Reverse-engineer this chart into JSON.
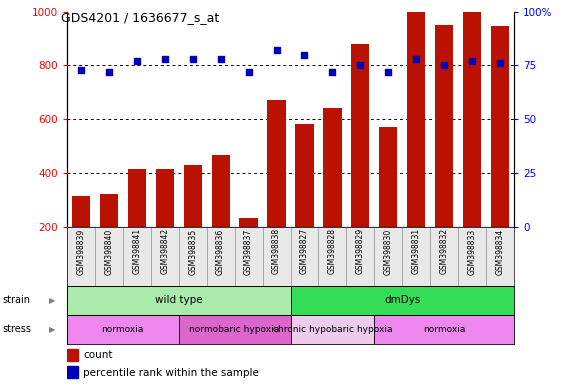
{
  "title": "GDS4201 / 1636677_s_at",
  "samples": [
    "GSM398839",
    "GSM398840",
    "GSM398841",
    "GSM398842",
    "GSM398835",
    "GSM398836",
    "GSM398837",
    "GSM398838",
    "GSM398827",
    "GSM398828",
    "GSM398829",
    "GSM398830",
    "GSM398831",
    "GSM398832",
    "GSM398833",
    "GSM398834"
  ],
  "counts": [
    315,
    320,
    415,
    415,
    430,
    465,
    230,
    670,
    580,
    640,
    880,
    570,
    1000,
    950,
    1000,
    945
  ],
  "percentile_ranks": [
    73,
    72,
    77,
    78,
    78,
    78,
    72,
    82,
    80,
    72,
    75,
    72,
    78,
    75,
    77,
    76
  ],
  "strain_groups": [
    {
      "label": "wild type",
      "start": 0,
      "end": 8,
      "color": "#aaeaaa"
    },
    {
      "label": "dmDys",
      "start": 8,
      "end": 16,
      "color": "#33dd55"
    }
  ],
  "stress_groups": [
    {
      "label": "normoxia",
      "start": 0,
      "end": 4,
      "color": "#ee88ee"
    },
    {
      "label": "normobaric hypoxia",
      "start": 4,
      "end": 8,
      "color": "#dd66cc"
    },
    {
      "label": "chronic hypobaric hypoxia",
      "start": 8,
      "end": 11,
      "color": "#eeccee"
    },
    {
      "label": "normoxia",
      "start": 11,
      "end": 16,
      "color": "#ee88ee"
    }
  ],
  "bar_color": "#bb1100",
  "dot_color": "#0000bb",
  "left_ylim": [
    200,
    1000
  ],
  "left_yticks": [
    200,
    400,
    600,
    800,
    1000
  ],
  "right_ylim": [
    0,
    100
  ],
  "right_yticks": [
    0,
    25,
    50,
    75,
    100
  ],
  "right_yticklabels": [
    "0",
    "25",
    "50",
    "75",
    "100%"
  ],
  "grid_values": [
    400,
    600,
    800
  ],
  "figsize": [
    5.81,
    3.84
  ],
  "dpi": 100
}
